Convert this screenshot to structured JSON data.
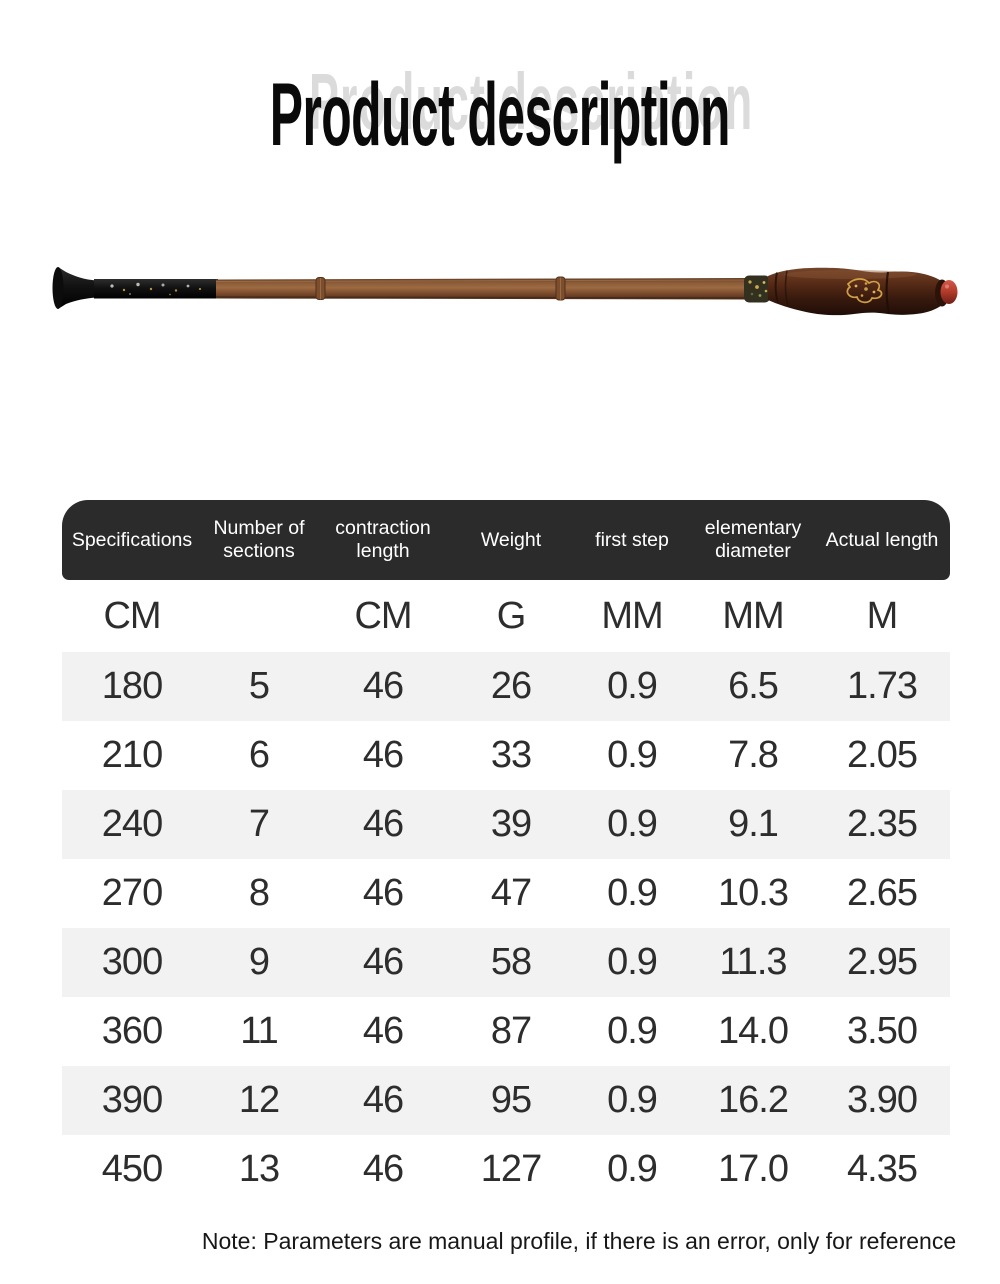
{
  "title": "Product description",
  "rod_image": {
    "name": "telescopic-wooden-fishing-rod-collapsed",
    "colors": {
      "tip_black": "#141414",
      "shaft_wood": "#8a5a38",
      "handle_wood": "#3f1d0f",
      "emblem_gold": "#d8a74a",
      "end_cap_red": "#b03a2a"
    }
  },
  "table": {
    "headers": [
      "Specifications",
      "Number of sections",
      "contraction length",
      "Weight",
      "first step",
      "elementary diameter",
      "Actual length"
    ],
    "units": [
      "CM",
      "",
      "CM",
      "G",
      "MM",
      "MM",
      "M"
    ],
    "rows": [
      [
        "180",
        "5",
        "46",
        "26",
        "0.9",
        "6.5",
        "1.73"
      ],
      [
        "210",
        "6",
        "46",
        "33",
        "0.9",
        "7.8",
        "2.05"
      ],
      [
        "240",
        "7",
        "46",
        "39",
        "0.9",
        "9.1",
        "2.35"
      ],
      [
        "270",
        "8",
        "46",
        "47",
        "0.9",
        "10.3",
        "2.65"
      ],
      [
        "300",
        "9",
        "46",
        "58",
        "0.9",
        "11.3",
        "2.95"
      ],
      [
        "360",
        "11",
        "46",
        "87",
        "0.9",
        "14.0",
        "3.50"
      ],
      [
        "390",
        "12",
        "46",
        "95",
        "0.9",
        "16.2",
        "3.90"
      ],
      [
        "450",
        "13",
        "46",
        "127",
        "0.9",
        "17.0",
        "4.35"
      ]
    ]
  },
  "note": "Note: Parameters are manual profile, if there is an error, only for reference",
  "colors": {
    "header_bg": "#2b2b2b",
    "header_text": "#ffffff",
    "row_alt_bg": "#f2f2f2",
    "body_text": "#2d2d2d"
  }
}
